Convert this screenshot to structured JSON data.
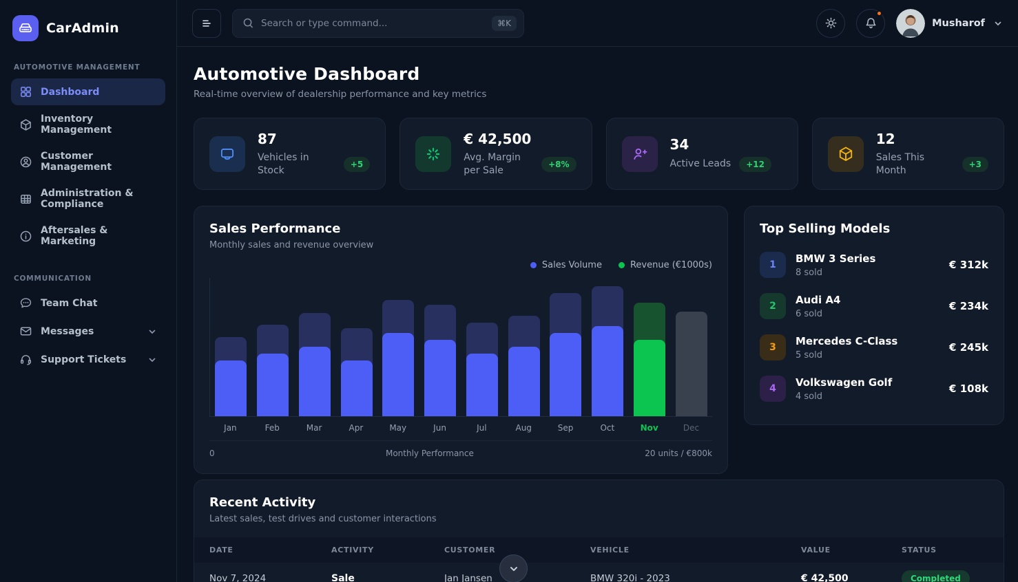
{
  "brand": {
    "name": "CarAdmin"
  },
  "sidebar": {
    "sections": [
      {
        "label": "AUTOMOTIVE MANAGEMENT",
        "items": [
          {
            "label": "Dashboard"
          },
          {
            "label": "Inventory Management"
          },
          {
            "label": "Customer Management"
          },
          {
            "label": "Administration & Compliance"
          },
          {
            "label": "Aftersales & Marketing"
          }
        ]
      },
      {
        "label": "COMMUNICATION",
        "items": [
          {
            "label": "Team Chat"
          },
          {
            "label": "Messages"
          },
          {
            "label": "Support Tickets"
          }
        ]
      }
    ]
  },
  "header": {
    "search": {
      "placeholder": "Search or type command...",
      "shortcut": "⌘K"
    },
    "user": {
      "name": "Musharof"
    }
  },
  "page": {
    "title": "Automotive Dashboard",
    "subtitle": "Real-time overview of dealership performance and key metrics"
  },
  "stats": [
    {
      "value": "87",
      "label": "Vehicles in Stock",
      "badge": "+5"
    },
    {
      "value": "€ 42,500",
      "label": "Avg. Margin per Sale",
      "badge": "+8%"
    },
    {
      "value": "34",
      "label": "Active Leads",
      "badge": "+12"
    },
    {
      "value": "12",
      "label": "Sales This Month",
      "badge": "+3"
    }
  ],
  "chart_data": {
    "type": "bar",
    "title": "Sales Performance",
    "subtitle": "Monthly sales and revenue overview",
    "categories": [
      "Jan",
      "Feb",
      "Mar",
      "Apr",
      "May",
      "Jun",
      "Jul",
      "Aug",
      "Sep",
      "Oct",
      "Nov",
      "Dec"
    ],
    "series": [
      {
        "name": "Sales Volume",
        "unit": "units",
        "max": 20,
        "values": [
          8,
          9,
          10,
          8,
          12,
          11,
          9,
          10,
          12,
          13,
          11,
          null
        ]
      },
      {
        "name": "Revenue (€1000s)",
        "unit": "€1000s",
        "max": 800,
        "values": [
          455,
          525,
          595,
          505,
          670,
          640,
          540,
          580,
          710,
          750,
          655,
          600
        ]
      }
    ],
    "highlight_month": "Nov",
    "muted_month": "Dec",
    "legend": [
      {
        "label": "Sales Volume",
        "color": "#4c5ef5"
      },
      {
        "label": "Revenue (€1000s)",
        "color": "#0cc550"
      }
    ],
    "footer": {
      "left": "0",
      "center": "Monthly Performance",
      "right": "20 units / €800k"
    }
  },
  "top_models": {
    "title": "Top Selling Models",
    "items": [
      {
        "rank": "1",
        "name": "BMW 3 Series",
        "sub": "8 sold",
        "price": "€ 312k"
      },
      {
        "rank": "2",
        "name": "Audi A4",
        "sub": "6 sold",
        "price": "€ 234k"
      },
      {
        "rank": "3",
        "name": "Mercedes C-Class",
        "sub": "5 sold",
        "price": "€ 245k"
      },
      {
        "rank": "4",
        "name": "Volkswagen Golf",
        "sub": "4 sold",
        "price": "€ 108k"
      }
    ]
  },
  "activity": {
    "title": "Recent Activity",
    "subtitle": "Latest sales, test drives and customer interactions",
    "columns": [
      "DATE",
      "ACTIVITY",
      "CUSTOMER",
      "VEHICLE",
      "VALUE",
      "STATUS"
    ],
    "rows": [
      {
        "date": "Nov 7, 2024",
        "activity": "Sale",
        "customer": "Jan Jansen",
        "vehicle": "BMW 320i - 2023",
        "value": "€ 42,500",
        "status": "Completed"
      }
    ]
  },
  "colors": {
    "accent_blue": "#4c5ef5",
    "bar_navy": "#27305f",
    "green_bright": "#0cc550",
    "green_dark": "#18532f",
    "bar_muted": "#3a414e",
    "amber": "#f5b40c",
    "purple": "#a868f5",
    "blue_icon": "#4f8ef8",
    "notification_dot": "#f97316",
    "badge_green": "#2fd276"
  }
}
